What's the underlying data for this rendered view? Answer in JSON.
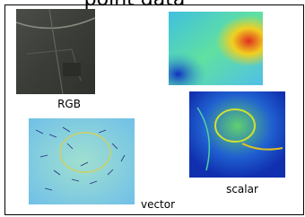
{
  "title": "point data",
  "labels": {
    "rgb": "RGB",
    "scalar": "scalar",
    "vector": "vector"
  }
}
